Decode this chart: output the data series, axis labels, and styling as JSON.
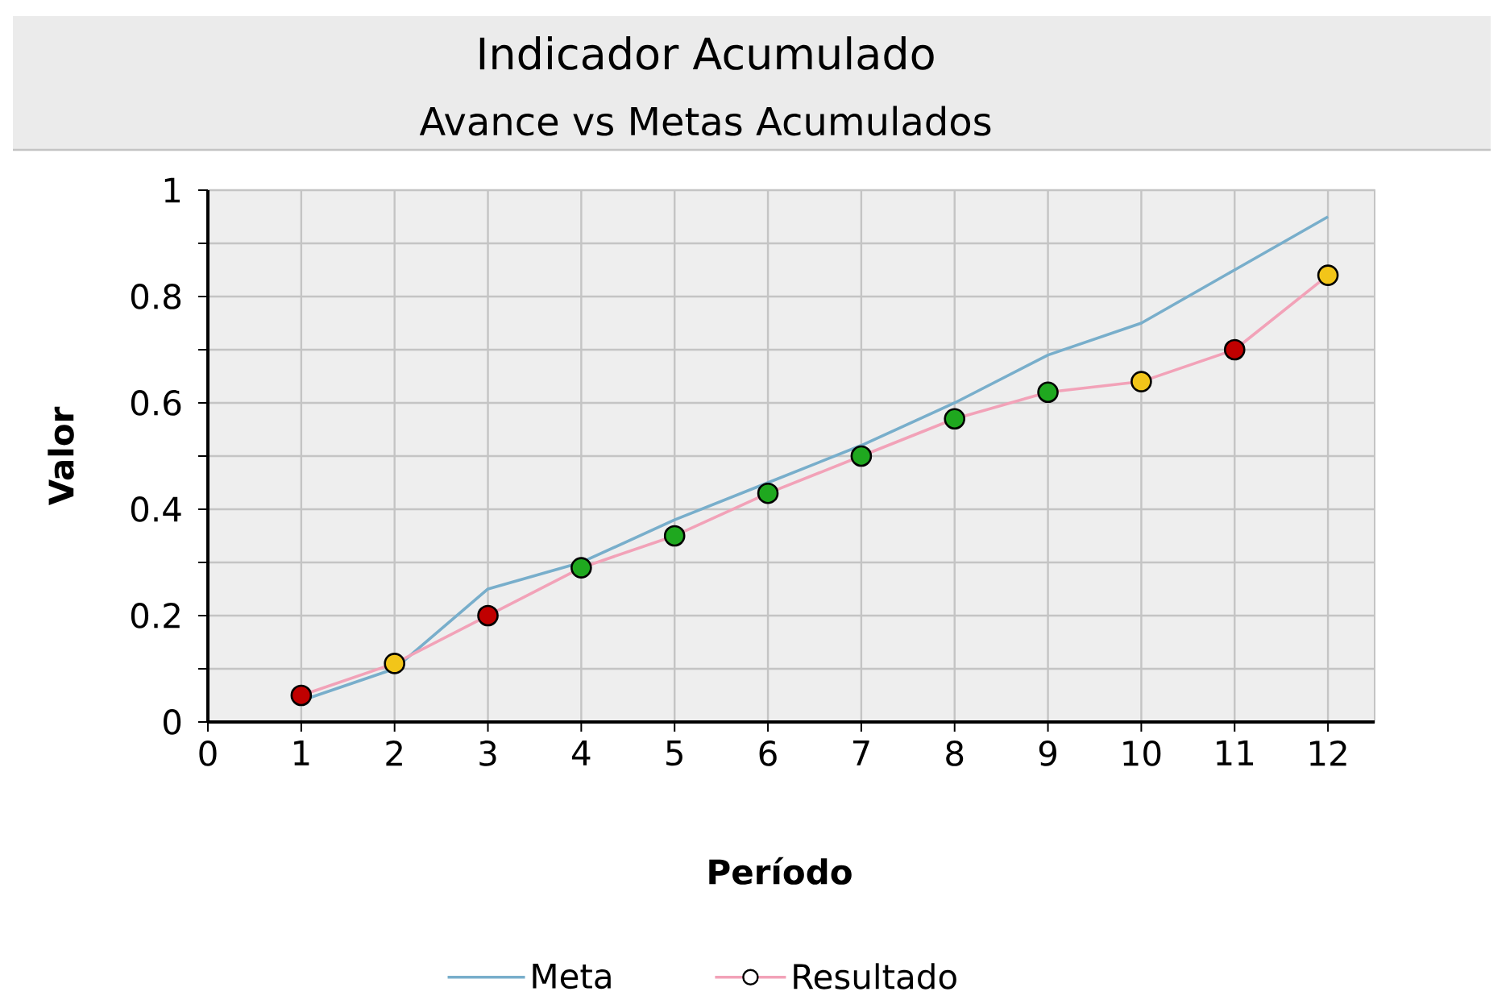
{
  "chart_data": {
    "type": "line",
    "title": "Indicador Acumulado",
    "subtitle": "Avance vs Metas Acumulados",
    "xlabel": "Período",
    "ylabel": "Valor",
    "x": [
      1,
      2,
      3,
      4,
      5,
      6,
      7,
      8,
      9,
      10,
      11,
      12
    ],
    "series": [
      {
        "name": "Meta",
        "color": "#78aecb",
        "marker": "none",
        "values": [
          0.04,
          0.1,
          0.25,
          0.3,
          0.38,
          0.45,
          0.52,
          0.6,
          0.69,
          0.75,
          0.85,
          0.95
        ]
      },
      {
        "name": "Resultado",
        "color": "#f2a2b8",
        "marker": "circle",
        "colors": [
          "#c00000",
          "#f2c519",
          "#c00000",
          "#1fa81f",
          "#1fa81f",
          "#1fa81f",
          "#1fa81f",
          "#1fa81f",
          "#1fa81f",
          "#f2c519",
          "#c00000",
          "#f2c519"
        ],
        "values": [
          0.05,
          0.11,
          0.2,
          0.29,
          0.35,
          0.43,
          0.5,
          0.57,
          0.62,
          0.64,
          0.7,
          0.84
        ]
      }
    ],
    "xlim": [
      0,
      12.5
    ],
    "xticks": [
      0,
      1,
      2,
      3,
      4,
      5,
      6,
      7,
      8,
      9,
      10,
      11,
      12
    ],
    "ylim": [
      0,
      1
    ],
    "yticks": [
      0,
      {
        "value": 0.1,
        "label": null
      },
      {
        "value": 0.2,
        "label": "0.2"
      },
      {
        "value": 0.3,
        "label": null
      },
      {
        "value": 0.4,
        "label": "0.4"
      },
      {
        "value": 0.5,
        "label": null
      },
      {
        "value": 0.6,
        "label": "0.6"
      },
      {
        "value": 0.7,
        "label": null
      },
      {
        "value": 0.8,
        "label": "0.8"
      },
      {
        "value": 0.9,
        "label": null
      },
      1
    ],
    "grid": true,
    "legend": "bottom"
  }
}
